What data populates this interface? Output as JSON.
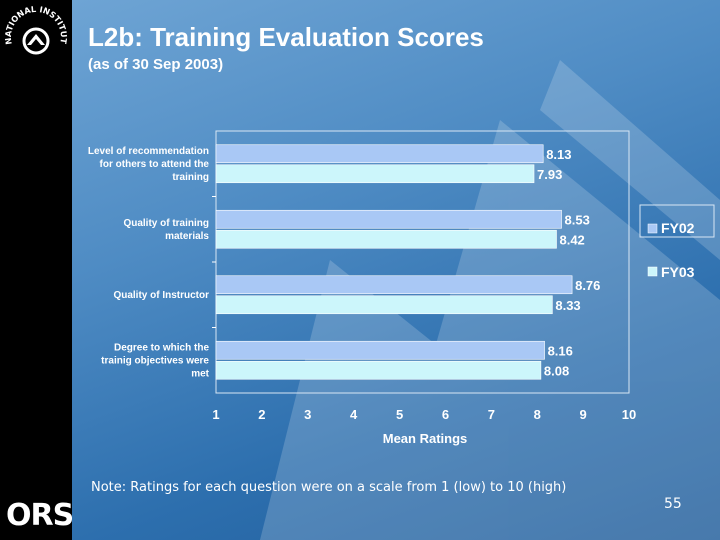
{
  "branding": {
    "logo_text": "NATIONAL INSTITUTES OF HEALTH",
    "org_abbrev": "ORS"
  },
  "slide": {
    "title": "L2b:  Training Evaluation Scores",
    "subtitle": "(as of 30 Sep 2003)",
    "note": "Note: Ratings for each question were on a scale from 1 (low) to 10 (high)",
    "page_number": "55"
  },
  "colors": {
    "fy02": "#a9c8f5",
    "fy03": "#ccf6fb"
  },
  "chart_data": {
    "type": "bar",
    "orientation": "horizontal",
    "categories": [
      [
        "Level of recommendation",
        "for others to attend the",
        "training"
      ],
      [
        "Quality of training",
        "materials"
      ],
      [
        "Quality of Instructor"
      ],
      [
        "Degree to which the",
        "trainig objectives were",
        "met"
      ]
    ],
    "series": [
      {
        "name": "FY02",
        "values": [
          8.13,
          8.53,
          8.76,
          8.16
        ],
        "labels": [
          "8.13",
          "8.53",
          "8.76",
          "8.16"
        ]
      },
      {
        "name": "FY03",
        "values": [
          7.93,
          8.42,
          8.33,
          8.08
        ],
        "labels": [
          "7.93",
          "8.42",
          "8.33",
          "8.08"
        ]
      }
    ],
    "xlim": [
      1,
      10
    ],
    "xticks": [
      "1",
      "2",
      "3",
      "4",
      "5",
      "6",
      "7",
      "8",
      "9",
      "10"
    ],
    "xlabel": "Mean Ratings",
    "legend_position": "right"
  }
}
